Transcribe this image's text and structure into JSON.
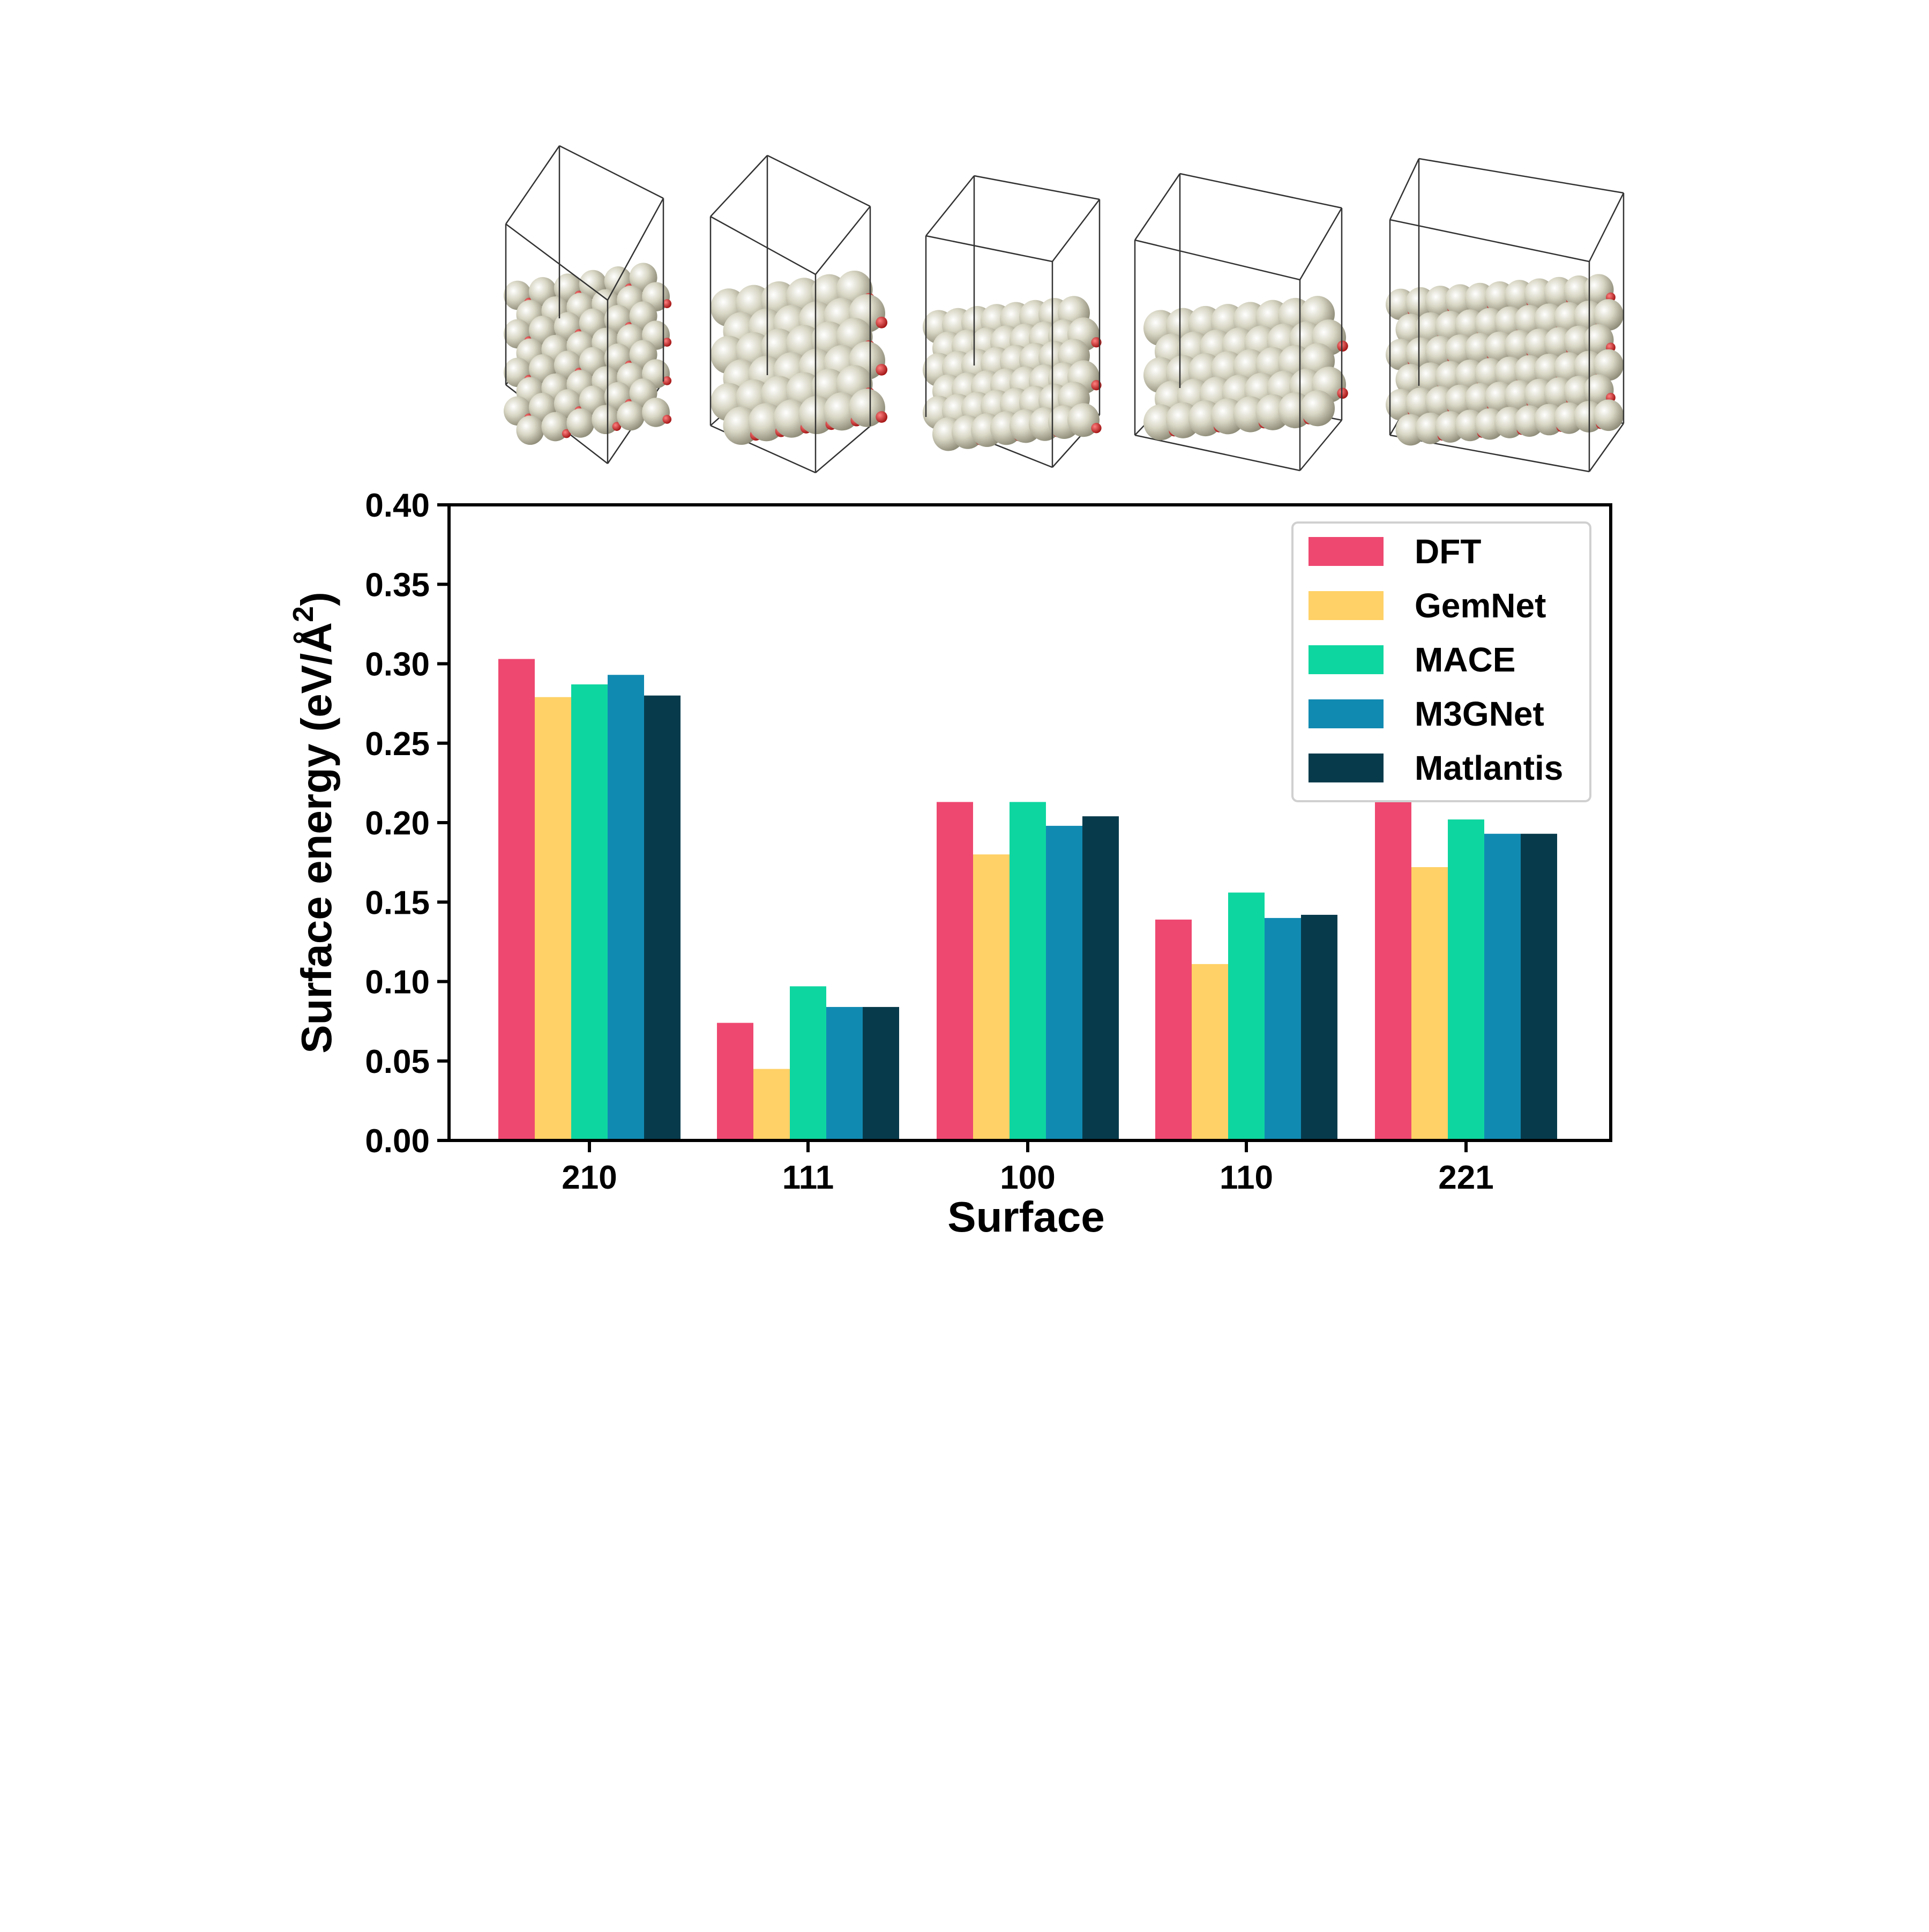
{
  "chart_data": {
    "type": "bar",
    "xlabel": "Surface",
    "ylabel": "Surface energy (eV/Å²)",
    "ylabel_main": "Surface energy (eV/Å",
    "ylabel_sup": "2",
    "ylabel_close": ")",
    "categories": [
      "210",
      "111",
      "100",
      "110",
      "221"
    ],
    "ylim": [
      0,
      0.4
    ],
    "yticks": [
      "0.00",
      "0.05",
      "0.10",
      "0.15",
      "0.20",
      "0.25",
      "0.30",
      "0.35",
      "0.40"
    ],
    "legend_position": "top-right",
    "grid": false,
    "series": [
      {
        "name": "DFT",
        "color": "#EE4870",
        "values": [
          0.303,
          0.074,
          0.213,
          0.139,
          0.224
        ]
      },
      {
        "name": "GemNet",
        "color": "#FFD166",
        "values": [
          0.279,
          0.045,
          0.18,
          0.111,
          0.172
        ]
      },
      {
        "name": "MACE",
        "color": "#0ED6A0",
        "values": [
          0.287,
          0.097,
          0.213,
          0.156,
          0.202
        ]
      },
      {
        "name": "M3GNet",
        "color": "#118AB2",
        "values": [
          0.293,
          0.084,
          0.198,
          0.14,
          0.193
        ]
      },
      {
        "name": "Matlantis",
        "color": "#073B4C",
        "values": [
          0.28,
          0.084,
          0.204,
          0.142,
          0.193
        ]
      }
    ]
  },
  "structures": {
    "atom_color": "#D8D6C4",
    "oxygen_color": "#D42020"
  }
}
